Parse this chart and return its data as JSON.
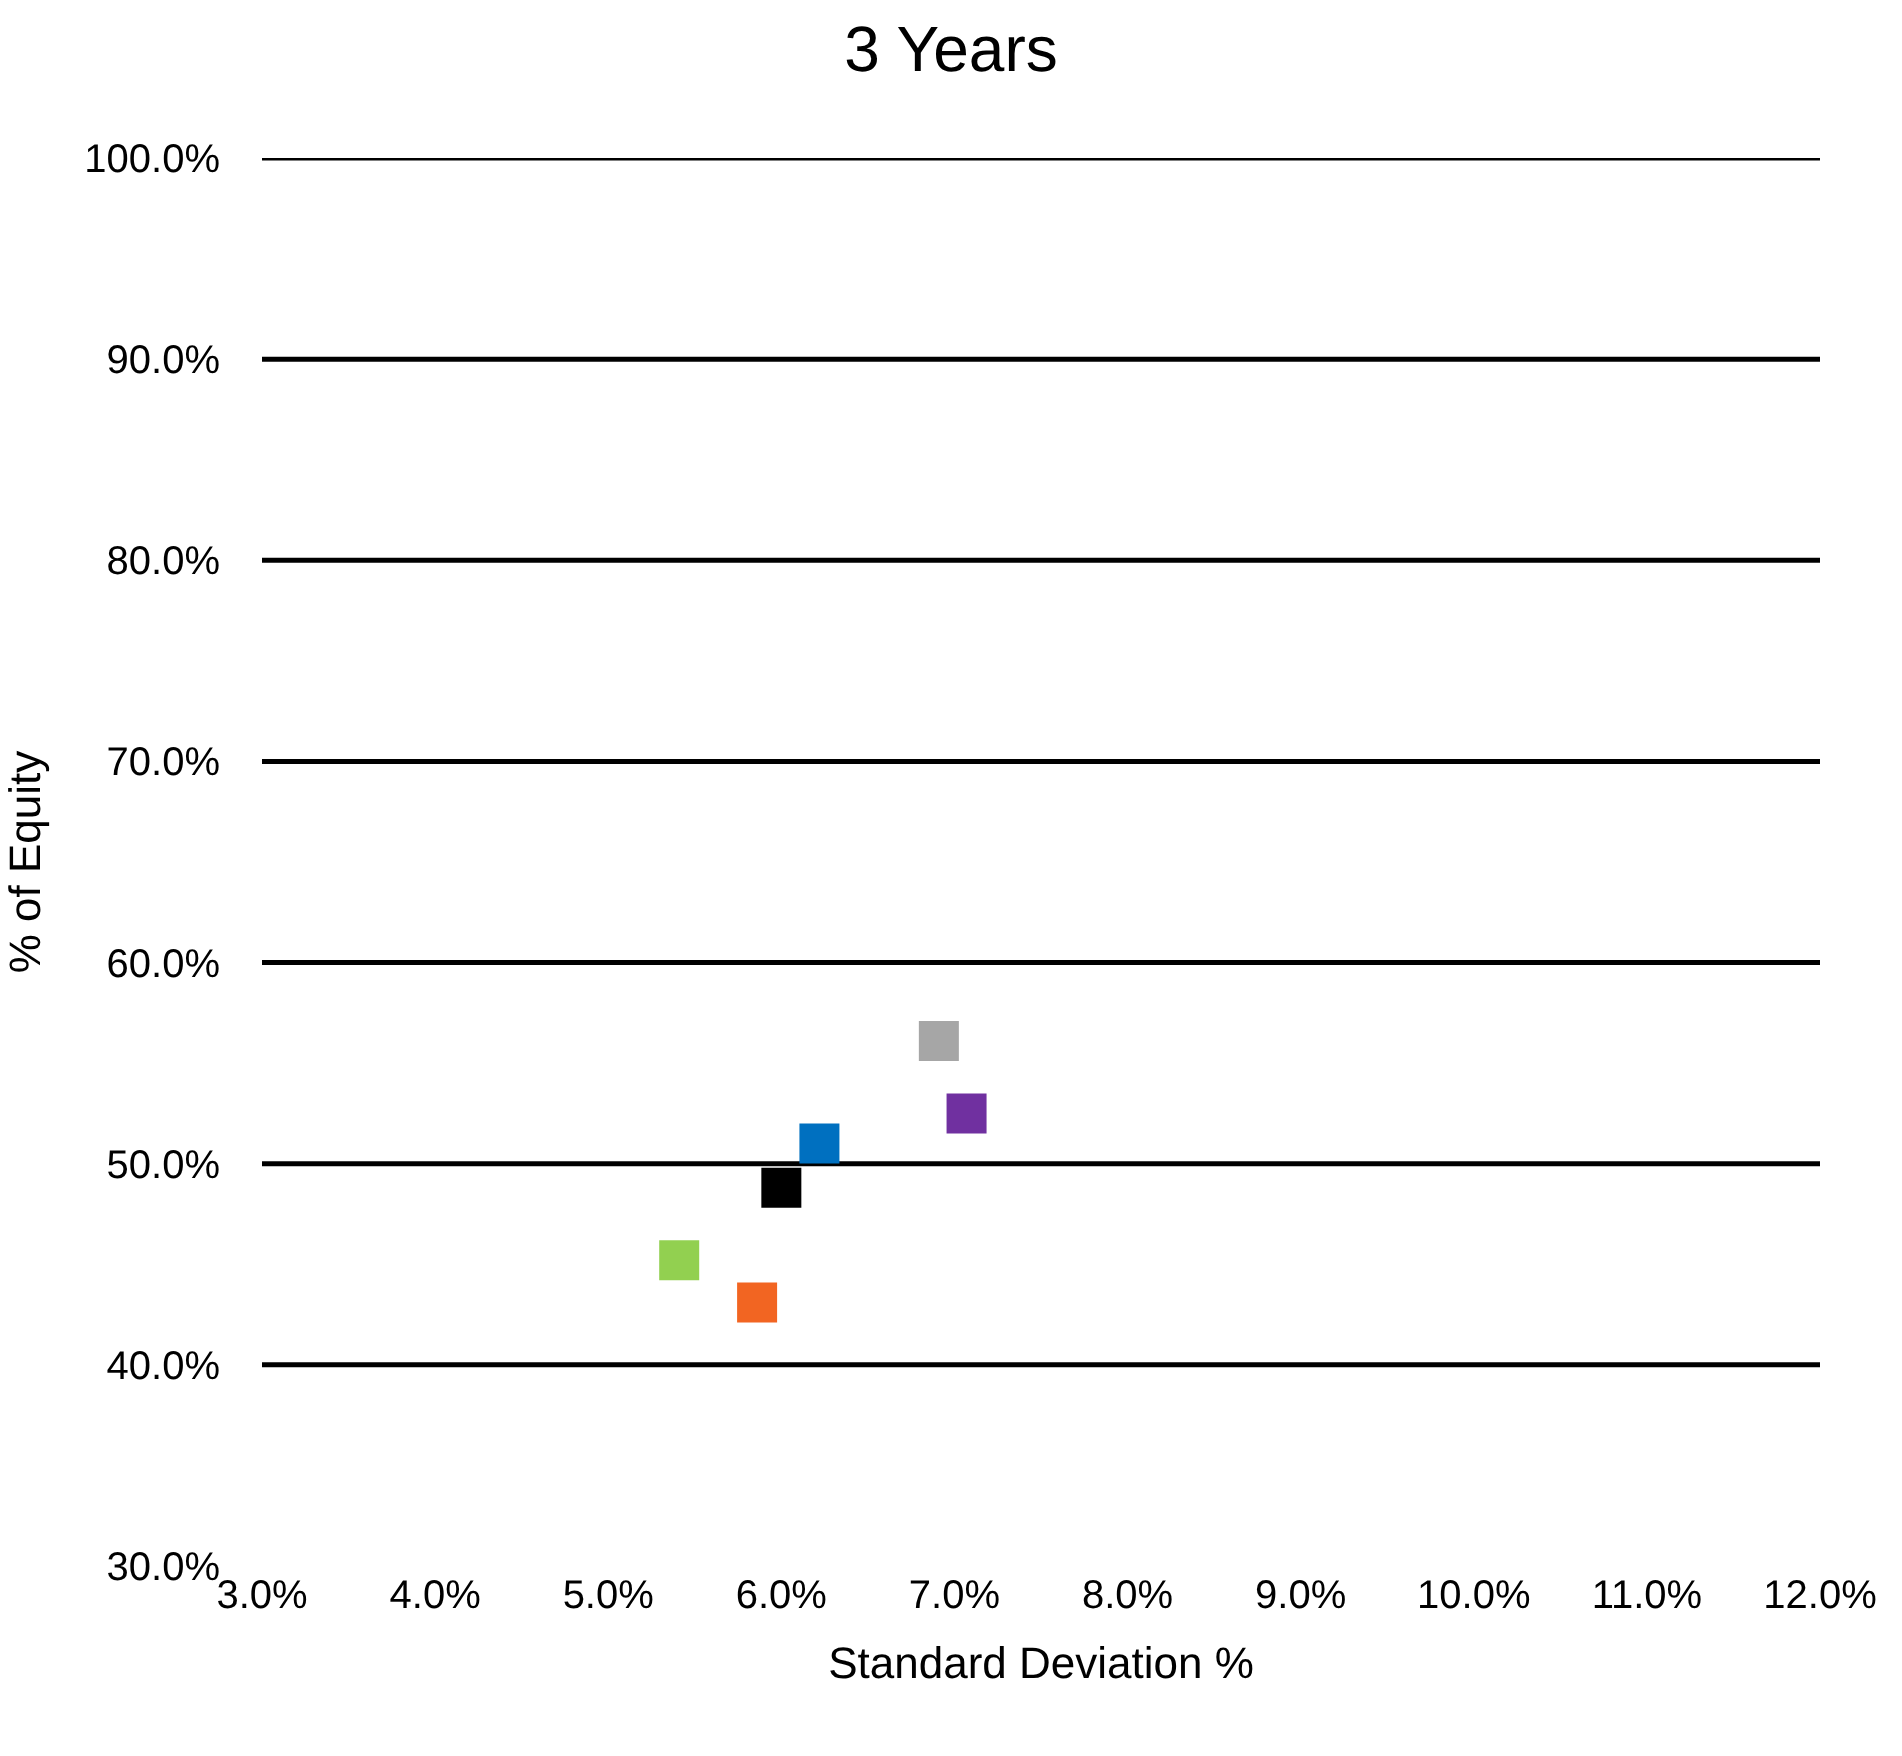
{
  "chart_data": {
    "type": "scatter",
    "title": "3 Years",
    "xlabel": "Standard Deviation %",
    "ylabel": "% of Equity",
    "x": [
      6.91,
      7.07,
      6.22,
      6.0,
      5.41,
      5.86
    ],
    "values": [
      56.1,
      52.5,
      51.0,
      48.8,
      45.2,
      43.1
    ],
    "colors": [
      "#a6a6a6",
      "#7030a0",
      "#0070c0",
      "#000000",
      "#92d050",
      "#f26522"
    ],
    "marker": "square",
    "xlim": [
      3,
      12
    ],
    "ylim": [
      30,
      100
    ],
    "xticks": [
      {
        "value": 3,
        "label": "3.0%"
      },
      {
        "value": 4,
        "label": "4.0%"
      },
      {
        "value": 5,
        "label": "5.0%"
      },
      {
        "value": 6,
        "label": "6.0%"
      },
      {
        "value": 7,
        "label": "7.0%"
      },
      {
        "value": 8,
        "label": "8.0%"
      },
      {
        "value": 9,
        "label": "9.0%"
      },
      {
        "value": 10,
        "label": "10.0%"
      },
      {
        "value": 11,
        "label": "11.0%"
      },
      {
        "value": 12,
        "label": "12.0%"
      }
    ],
    "yticks": [
      {
        "value": 30,
        "label": "30.0%"
      },
      {
        "value": 40,
        "label": "40.0%"
      },
      {
        "value": 50,
        "label": "50.0%"
      },
      {
        "value": 60,
        "label": "60.0%"
      },
      {
        "value": 70,
        "label": "70.0%"
      },
      {
        "value": 80,
        "label": "80.0%"
      },
      {
        "value": 90,
        "label": "90.0%"
      },
      {
        "value": 100,
        "label": "100.0%"
      }
    ],
    "grid": "y"
  }
}
